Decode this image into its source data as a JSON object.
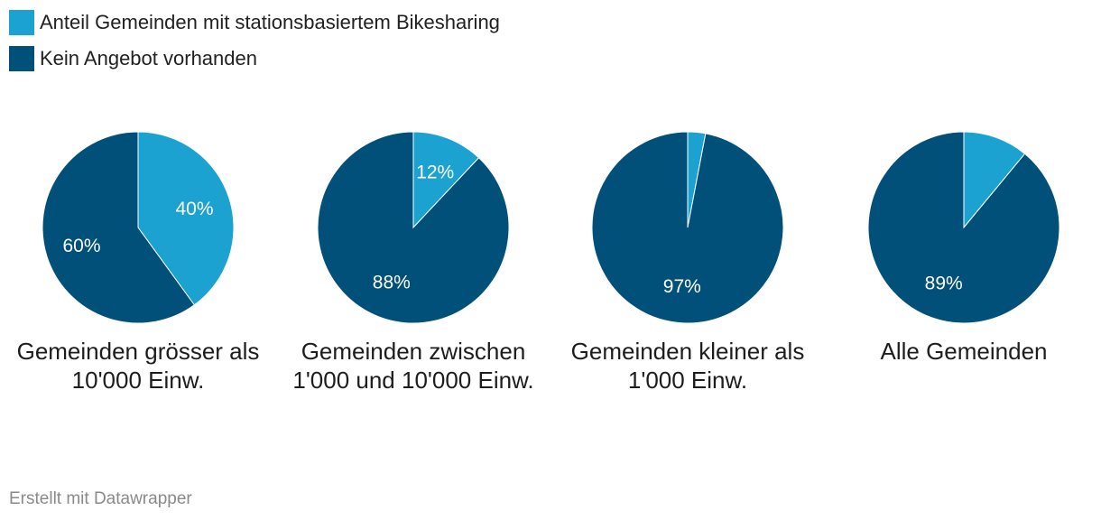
{
  "chart_data": {
    "type": "pie",
    "legend": [
      {
        "label": "Anteil Gemeinden mit stationsbasiertem Bikesharing",
        "color": "#1ba2d1"
      },
      {
        "label": "Kein Angebot vorhanden",
        "color": "#00507a"
      }
    ],
    "legend_position": "top-left",
    "pies": [
      {
        "title": "Gemeinden grösser als 10'000 Einw.",
        "values": [
          40,
          60
        ],
        "labels": [
          "40%",
          "60%"
        ],
        "show_labels": [
          true,
          true
        ]
      },
      {
        "title": "Gemeinden zwischen 1'000 und 10'000 Einw.",
        "values": [
          12,
          88
        ],
        "labels": [
          "12%",
          "88%"
        ],
        "show_labels": [
          true,
          true
        ]
      },
      {
        "title": "Gemeinden kleiner als 1'000 Einw.",
        "values": [
          3,
          97
        ],
        "labels": [
          "3%",
          "97%"
        ],
        "show_labels": [
          false,
          true
        ]
      },
      {
        "title": "Alle Gemeinden",
        "values": [
          11,
          89
        ],
        "labels": [
          "11%",
          "89%"
        ],
        "show_labels": [
          false,
          true
        ]
      }
    ]
  },
  "footer": {
    "credit": "Erstellt mit Datawrapper"
  }
}
